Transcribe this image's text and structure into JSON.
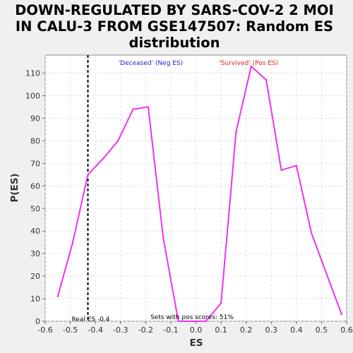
{
  "chart_data": {
    "type": "line",
    "title_lines": [
      "DOWN-REGULATED BY SARS-COV-2 2 MOI",
      "IN CALU-3 FROM GSE147507: Random ES",
      "distribution"
    ],
    "xlabel": "ES",
    "ylabel": "P(ES)",
    "xlim": [
      -0.6,
      0.6
    ],
    "ylim": [
      0,
      118
    ],
    "xticks": [
      -0.6,
      -0.5,
      -0.4,
      -0.3,
      -0.2,
      -0.1,
      0.0,
      0.1,
      0.2,
      0.3,
      0.4,
      0.5,
      0.6
    ],
    "xtick_labels": [
      "-0.6",
      "-0.5",
      "-0.4",
      "-0.3",
      "-0.2",
      "-0.1",
      "0.0",
      "0.1",
      "0.2",
      "0.3",
      "0.4",
      "0.5",
      "0.6"
    ],
    "yticks": [
      0,
      10,
      20,
      30,
      40,
      50,
      60,
      70,
      80,
      90,
      100,
      110
    ],
    "ytick_labels": [
      "0",
      "10",
      "20",
      "30",
      "40",
      "50",
      "60",
      "70",
      "80",
      "90",
      "100",
      "110"
    ],
    "grid": true,
    "series": [
      {
        "color": "#ee33ee",
        "x": [
          -0.55,
          -0.49,
          -0.43,
          -0.37,
          -0.31,
          -0.25,
          -0.19,
          -0.13,
          -0.07,
          -0.01,
          0.04,
          0.1,
          0.16,
          0.22,
          0.28,
          0.34,
          0.4,
          0.46,
          0.52,
          0.58
        ],
        "y": [
          11,
          35,
          65,
          72,
          80,
          94,
          95,
          37,
          0,
          0,
          0,
          8,
          84,
          113,
          107,
          67,
          69,
          39,
          21,
          3
        ]
      }
    ],
    "real_es": {
      "value": -0.43,
      "label": "Real ES -0.4",
      "color": "#000000"
    },
    "annotations": {
      "neg_label": "'Deceased' (Neg ES)",
      "neg_color": "#2222cc",
      "pos_label": "'Survived' (Pos ES)",
      "pos_color": "#dd2222",
      "pos_scores": "Sets with pos scores: 51%"
    }
  }
}
